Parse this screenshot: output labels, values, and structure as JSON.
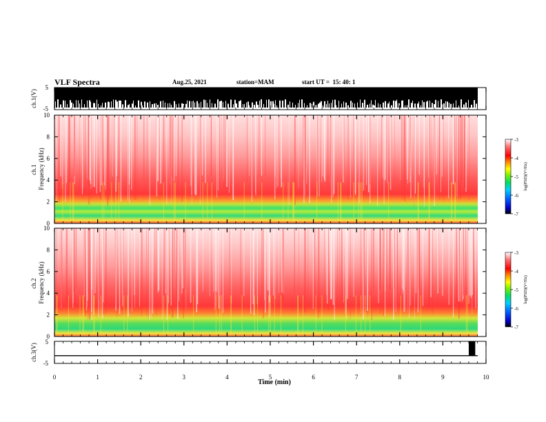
{
  "header": {
    "title": "VLF Spectra",
    "date": "Aug.25, 2021",
    "station": "station=MAM",
    "start": "start UT =  15: 40: 1"
  },
  "chart_data": [
    {
      "type": "line",
      "panel": "ch1-waveform",
      "ylabel": "ch.1(V)",
      "ylim": [
        -5,
        5
      ],
      "yticks": [
        "5",
        "-5"
      ],
      "xlim": [
        0,
        10
      ],
      "note_series": "dense broadband signal filling ~-2 to 5 V nearly everywhere"
    },
    {
      "type": "heatmap",
      "panel": "ch1-spectrogram",
      "ylabel": "ch.1\nFrequency (kHz)",
      "ylim": [
        0,
        10
      ],
      "yticks": [
        "0",
        "2",
        "4",
        "6",
        "8",
        "10"
      ],
      "xlim": [
        0,
        10
      ],
      "colorbar": {
        "label": "log(PSD)(V²/Hz)",
        "range": [
          -7,
          -3
        ],
        "ticks": [
          "-3",
          "-4",
          "-5",
          "-6",
          "-7"
        ]
      }
    },
    {
      "type": "heatmap",
      "panel": "ch2-spectrogram",
      "ylabel": "ch.2\nFrequency (kHz)",
      "ylim": [
        0,
        10
      ],
      "yticks": [
        "0",
        "2",
        "4",
        "6",
        "8",
        "10"
      ],
      "xlim": [
        0,
        10
      ],
      "colorbar": {
        "label": "log(PSD)(V²/Hz)",
        "range": [
          -7,
          -3
        ],
        "ticks": [
          "-3",
          "-4",
          "-5",
          "-6",
          "-7"
        ]
      }
    },
    {
      "type": "line",
      "panel": "ch3-waveform",
      "ylabel": "ch.3(V)",
      "ylim": [
        -5,
        5
      ],
      "yticks": [
        "5",
        "-5"
      ],
      "xlim": [
        0,
        10
      ],
      "xlabel": "Time (min)",
      "xticks": [
        "0",
        "1",
        "2",
        "3",
        "4",
        "5",
        "6",
        "7",
        "8",
        "9",
        "10"
      ],
      "baseline": -1.5,
      "pulse": {
        "x_start": 9.6,
        "x_end": 9.75,
        "y_top": 5
      }
    }
  ]
}
